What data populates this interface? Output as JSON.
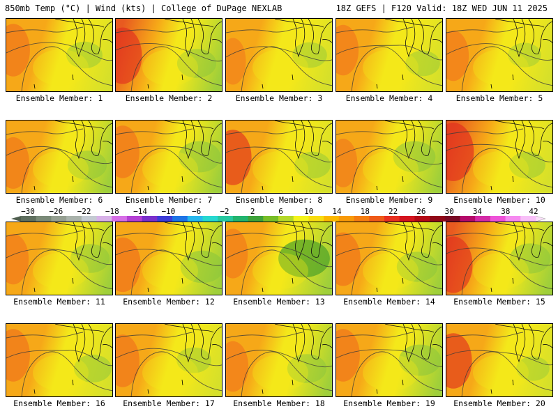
{
  "header": {
    "left": "850mb Temp (°C) | Wind (kts) | College of DuPage NEXLAB",
    "right": "18Z GEFS | F120 Valid: 18Z WED JUN 11 2025"
  },
  "panels": [
    {
      "label": "Ensemble Member: 1",
      "west_warmth": 0.55,
      "east_cool": 0.45
    },
    {
      "label": "Ensemble Member: 2",
      "west_warmth": 0.75,
      "east_cool": 0.55
    },
    {
      "label": "Ensemble Member: 3",
      "west_warmth": 0.25,
      "east_cool": 0.4
    },
    {
      "label": "Ensemble Member: 4",
      "west_warmth": 0.45,
      "east_cool": 0.4
    },
    {
      "label": "Ensemble Member: 5",
      "west_warmth": 0.45,
      "east_cool": 0.35
    },
    {
      "label": "Ensemble Member: 6",
      "west_warmth": 0.5,
      "east_cool": 0.55
    },
    {
      "label": "Ensemble Member: 7",
      "west_warmth": 0.55,
      "east_cool": 0.65
    },
    {
      "label": "Ensemble Member: 8",
      "west_warmth": 0.7,
      "east_cool": 0.45
    },
    {
      "label": "Ensemble Member: 9",
      "west_warmth": 0.35,
      "east_cool": 0.65
    },
    {
      "label": "Ensemble Member: 10",
      "west_warmth": 0.85,
      "east_cool": 0.45
    },
    {
      "label": "Ensemble Member: 11",
      "west_warmth": 0.45,
      "east_cool": 0.55
    },
    {
      "label": "Ensemble Member: 12",
      "west_warmth": 0.65,
      "east_cool": 0.7
    },
    {
      "label": "Ensemble Member: 13",
      "west_warmth": 0.4,
      "east_cool": 0.95
    },
    {
      "label": "Ensemble Member: 14",
      "west_warmth": 0.6,
      "east_cool": 0.6
    },
    {
      "label": "Ensemble Member: 15",
      "west_warmth": 0.75,
      "east_cool": 0.6
    },
    {
      "label": "Ensemble Member: 16",
      "west_warmth": 0.55,
      "east_cool": 0.5
    },
    {
      "label": "Ensemble Member: 17",
      "west_warmth": 0.55,
      "east_cool": 0.4
    },
    {
      "label": "Ensemble Member: 18",
      "west_warmth": 0.45,
      "east_cool": 0.55
    },
    {
      "label": "Ensemble Member: 19",
      "west_warmth": 0.55,
      "east_cool": 0.65
    },
    {
      "label": "Ensemble Member: 20",
      "west_warmth": 0.7,
      "east_cool": 0.35
    }
  ],
  "colorbar": {
    "labels": [
      "-30",
      "-26",
      "-22",
      "-18",
      "-14",
      "-10",
      "-6",
      "-2",
      "2",
      "6",
      "10",
      "14",
      "18",
      "22",
      "26",
      "30",
      "34",
      "38",
      "42"
    ],
    "colors": [
      "#5f6f5f",
      "#7a8a78",
      "#959f91",
      "#aab3ac",
      "#c4cbd2",
      "#d8b2e8",
      "#d66ee6",
      "#b440d4",
      "#7a30cc",
      "#3c3cd8",
      "#1e74e6",
      "#28b8ee",
      "#27d8d0",
      "#27c8a0",
      "#22b46e",
      "#3ea23a",
      "#78be28",
      "#b4d82a",
      "#f4f41c",
      "#f8dc10",
      "#fbb800",
      "#f89a08",
      "#f47c10",
      "#ef5a18",
      "#e83020",
      "#d4141e",
      "#b40a16",
      "#900818",
      "#7a0a24",
      "#b40a6a",
      "#d42aa6",
      "#ee52d8",
      "#f68af0",
      "#f8c0f8"
    ]
  },
  "palette": {
    "cool": "#9fcf3a",
    "mid": "#f4e81a",
    "warm": "#f6a818",
    "hot": "#e85a20",
    "border_line": "#3a3a3a"
  }
}
